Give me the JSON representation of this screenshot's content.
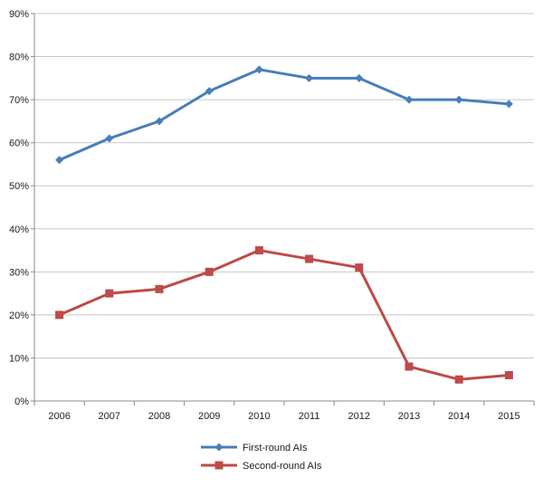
{
  "chart_data": {
    "type": "line",
    "title": "",
    "xlabel": "",
    "ylabel": "",
    "categories": [
      "2006",
      "2007",
      "2008",
      "2009",
      "2010",
      "2011",
      "2012",
      "2013",
      "2014",
      "2015"
    ],
    "ylim": [
      0,
      90
    ],
    "yticks": [
      "0%",
      "10%",
      "20%",
      "30%",
      "40%",
      "50%",
      "60%",
      "70%",
      "80%",
      "90%"
    ],
    "grid": "horizontal",
    "legend_position": "bottom",
    "series": [
      {
        "name": "First-round AIs",
        "color": "#4a7ebb",
        "marker": "diamond",
        "values": [
          56,
          61,
          65,
          72,
          77,
          75,
          75,
          70,
          70,
          69
        ]
      },
      {
        "name": "Second-round AIs",
        "color": "#be4b48",
        "marker": "square",
        "values": [
          20,
          25,
          26,
          30,
          35,
          33,
          31,
          8,
          5,
          6
        ]
      }
    ]
  }
}
